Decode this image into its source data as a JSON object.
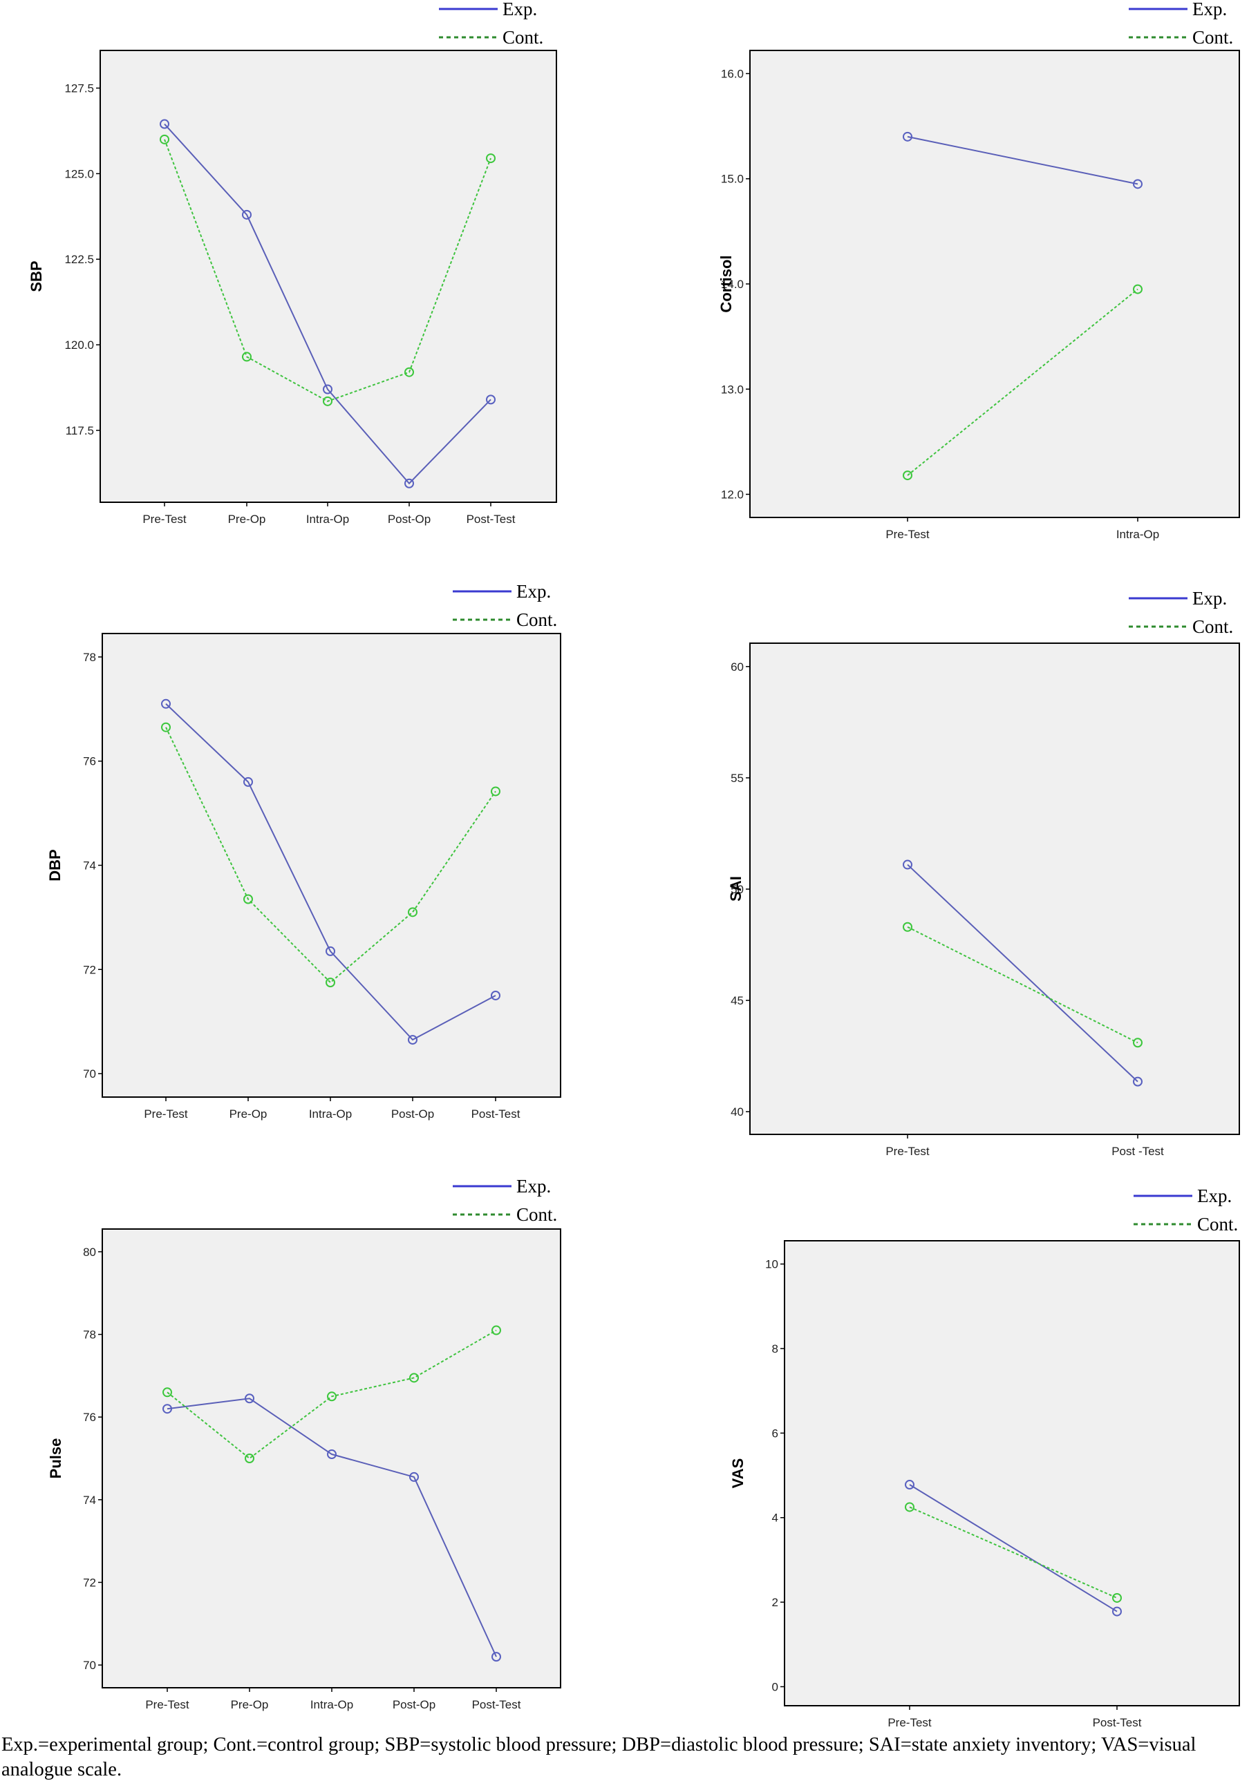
{
  "legend": [
    {
      "label": "Exp.",
      "color": "#3a3ad0",
      "dash": "solid"
    },
    {
      "label": "Cont.",
      "color": "#2e8b2e",
      "dash": "dotted"
    }
  ],
  "series_colors": {
    "exp_line": "#5a5fb8",
    "exp_marker": "#5860c0",
    "cont_line": "#3fc33f",
    "cont_marker": "#3cc73c",
    "plot_bg": "#f0f0f0"
  },
  "chart_data": [
    {
      "type": "line",
      "ylabel": "SBP",
      "categories": [
        "Pre-Test",
        "Pre-Op",
        "Intra-Op",
        "Post-Op",
        "Post-Test"
      ],
      "ylim": [
        115.4,
        128.6
      ],
      "yticks": [
        117.5,
        120.0,
        122.5,
        125.0,
        127.5
      ],
      "yticklabels": [
        "117.5",
        "120.0",
        "122.5",
        "125.0",
        "127.5"
      ],
      "series": [
        {
          "name": "Exp.",
          "values": [
            126.45,
            123.8,
            118.7,
            115.95,
            118.4
          ]
        },
        {
          "name": "Cont.",
          "values": [
            126.0,
            119.65,
            118.35,
            119.2,
            125.45
          ]
        }
      ]
    },
    {
      "type": "line",
      "ylabel": "Cortisol",
      "categories": [
        "Pre-Test",
        "Intra-Op"
      ],
      "ylim": [
        11.78,
        16.22
      ],
      "yticks": [
        12.0,
        13.0,
        14.0,
        15.0,
        16.0
      ],
      "yticklabels": [
        "12.0",
        "13.0",
        "14.0",
        "15.0",
        "16.0"
      ],
      "series": [
        {
          "name": "Exp.",
          "values": [
            15.4,
            14.95
          ]
        },
        {
          "name": "Cont.",
          "values": [
            12.18,
            13.95
          ]
        }
      ]
    },
    {
      "type": "line",
      "ylabel": "DBP",
      "categories": [
        "Pre-Test",
        "Pre-Op",
        "Intra-Op",
        "Post-Op",
        "Post-Test"
      ],
      "ylim": [
        69.55,
        78.45
      ],
      "yticks": [
        70,
        72,
        74,
        76,
        78
      ],
      "yticklabels": [
        "70",
        "72",
        "74",
        "76",
        "78"
      ],
      "series": [
        {
          "name": "Exp.",
          "values": [
            77.1,
            75.6,
            72.35,
            70.65,
            71.5
          ]
        },
        {
          "name": "Cont.",
          "values": [
            76.65,
            73.35,
            71.75,
            73.1,
            75.42
          ]
        }
      ]
    },
    {
      "type": "line",
      "ylabel": "SAI",
      "categories": [
        "Pre-Test",
        "Post -Test"
      ],
      "ylim": [
        38.98,
        61.05
      ],
      "yticks": [
        40,
        45,
        50,
        55,
        60
      ],
      "yticklabels": [
        "40",
        "45",
        "50",
        "55",
        "60"
      ],
      "series": [
        {
          "name": "Exp.",
          "values": [
            51.1,
            41.35
          ]
        },
        {
          "name": "Cont.",
          "values": [
            48.3,
            43.1
          ]
        }
      ]
    },
    {
      "type": "line",
      "ylabel": "Pulse",
      "categories": [
        "Pre-Test",
        "Pre-Op",
        "Intra-Op",
        "Post-Op",
        "Post-Test"
      ],
      "ylim": [
        69.45,
        80.55
      ],
      "yticks": [
        70,
        72,
        74,
        76,
        78,
        80
      ],
      "yticklabels": [
        "70",
        "72",
        "74",
        "76",
        "78",
        "80"
      ],
      "series": [
        {
          "name": "Exp.",
          "values": [
            76.2,
            76.45,
            75.1,
            74.55,
            70.2
          ]
        },
        {
          "name": "Cont.",
          "values": [
            76.6,
            75.0,
            76.5,
            76.95,
            78.1
          ]
        }
      ]
    },
    {
      "type": "line",
      "ylabel": "VAS",
      "categories": [
        "Pre-Test",
        "Post-Test"
      ],
      "ylim": [
        -0.45,
        10.55
      ],
      "yticks": [
        0,
        2,
        4,
        6,
        8,
        10
      ],
      "yticklabels": [
        "0",
        "2",
        "4",
        "6",
        "8",
        "10"
      ],
      "series": [
        {
          "name": "Exp.",
          "values": [
            4.78,
            1.78
          ]
        },
        {
          "name": "Cont.",
          "values": [
            4.25,
            2.1
          ]
        }
      ]
    }
  ],
  "caption": "Exp.=experimental group; Cont.=control group; SBP=systolic blood pressure; DBP=diastolic blood pressure; SAI=state anxiety inventory; VAS=visual analogue scale."
}
